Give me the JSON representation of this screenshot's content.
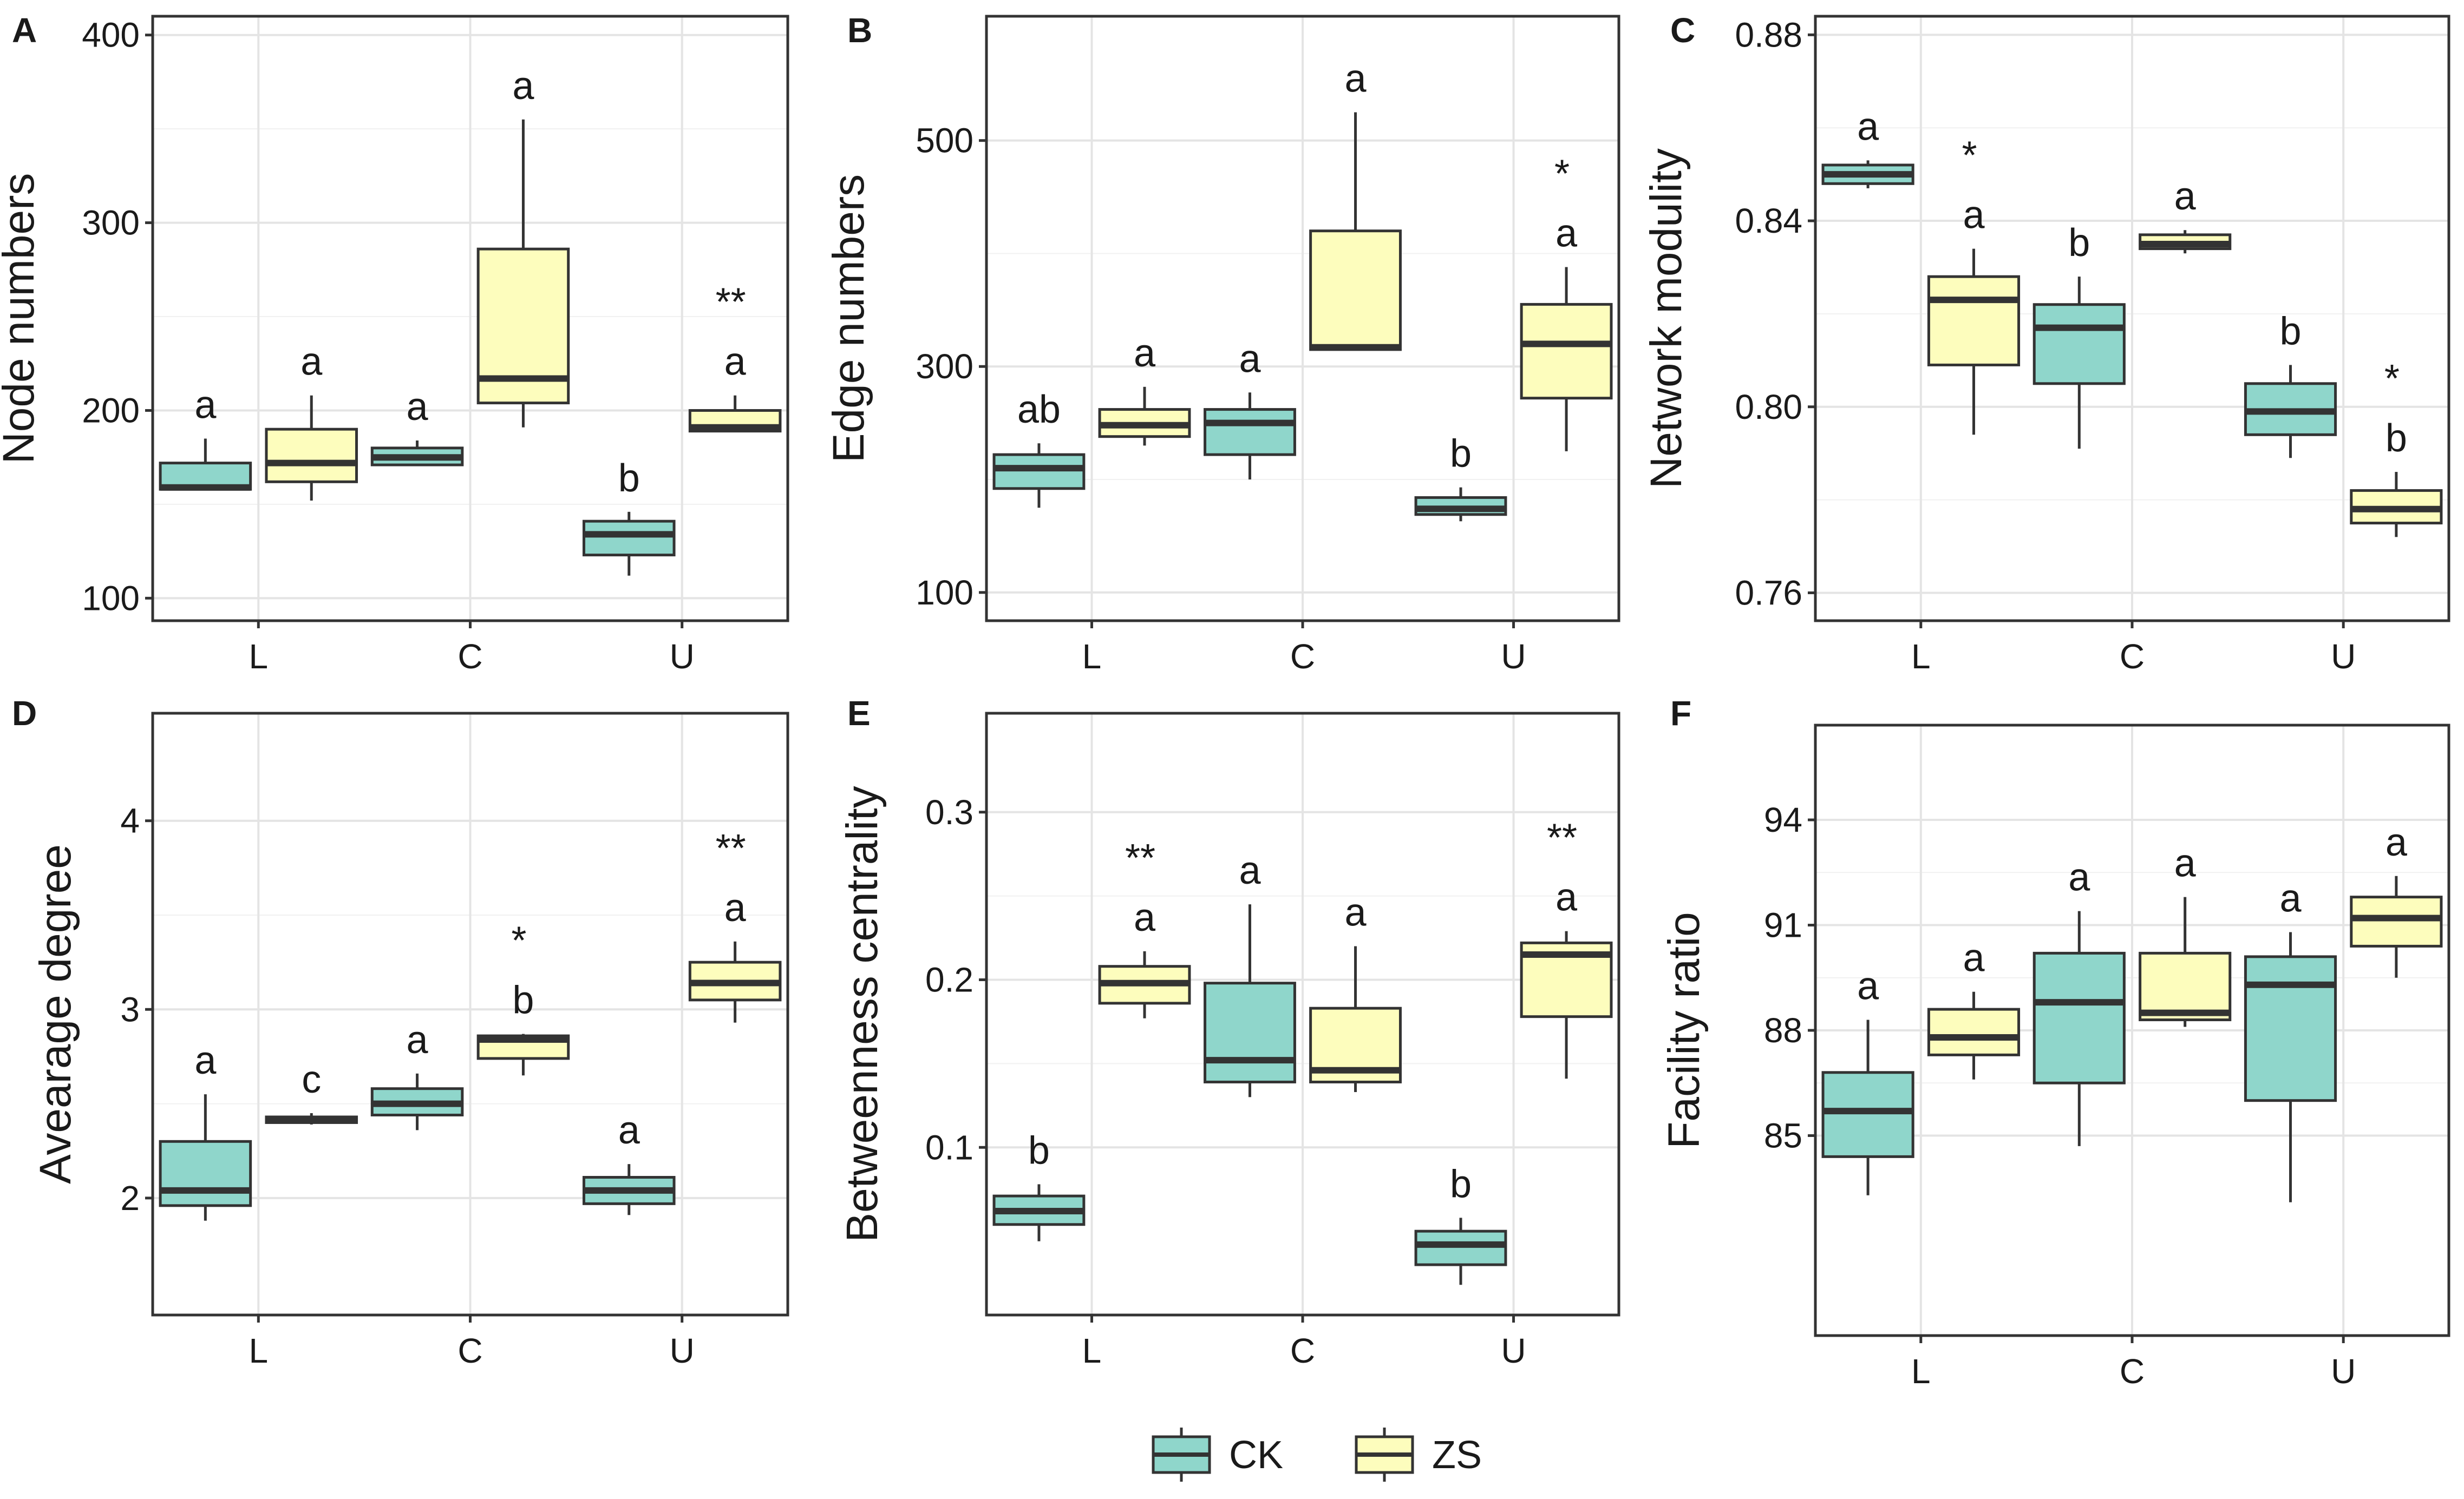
{
  "legend": {
    "items": [
      {
        "label": "CK",
        "fill": "#8fd6cb"
      },
      {
        "label": "ZS",
        "fill": "#fdfdbd"
      }
    ]
  },
  "colors": {
    "ck": "#8fd6cb",
    "zs": "#fdfdbd",
    "grid": "#e4e4e4",
    "frame": "#333333",
    "median": "#333333"
  },
  "chart_data": [
    {
      "panel": "A",
      "type": "box",
      "ylabel": "Node numbers",
      "categories": [
        "L",
        "C",
        "U"
      ],
      "ylim": [
        88,
        410
      ],
      "yticks": [
        100,
        200,
        300,
        400
      ],
      "ytick_labels": [
        "100",
        "200",
        "300",
        "400"
      ],
      "series": [
        {
          "name": "CK",
          "boxes": [
            {
              "min": 158,
              "q1": 158,
              "median": 159,
              "q3": 172,
              "max": 185
            },
            {
              "min": 171,
              "q1": 171,
              "median": 175,
              "q3": 180,
              "max": 184
            },
            {
              "min": 112,
              "q1": 123,
              "median": 134,
              "q3": 141,
              "max": 146
            }
          ],
          "letters": [
            "a",
            "a",
            "b"
          ]
        },
        {
          "name": "ZS",
          "boxes": [
            {
              "min": 152,
              "q1": 162,
              "median": 172,
              "q3": 190,
              "max": 208
            },
            {
              "min": 191,
              "q1": 204,
              "median": 217,
              "q3": 286,
              "max": 355
            },
            {
              "min": 189,
              "q1": 189,
              "median": 191,
              "q3": 200,
              "max": 208
            }
          ],
          "letters": [
            "a",
            "a",
            "a"
          ]
        }
      ],
      "stars": [
        "",
        "",
        "**"
      ]
    },
    {
      "panel": "B",
      "type": "box",
      "ylabel": "Edge numbers",
      "categories": [
        "L",
        "C",
        "U"
      ],
      "ylim": [
        75,
        610
      ],
      "yticks": [
        100,
        300,
        500
      ],
      "ytick_labels": [
        "100",
        "300",
        "500"
      ],
      "series": [
        {
          "name": "CK",
          "boxes": [
            {
              "min": 175,
              "q1": 192,
              "median": 210,
              "q3": 222,
              "max": 232
            },
            {
              "min": 200,
              "q1": 222,
              "median": 250,
              "q3": 262,
              "max": 277
            },
            {
              "min": 163,
              "q1": 169,
              "median": 174,
              "q3": 184,
              "max": 193
            }
          ],
          "letters": [
            "ab",
            "a",
            "b"
          ]
        },
        {
          "name": "ZS",
          "boxes": [
            {
              "min": 230,
              "q1": 238,
              "median": 248,
              "q3": 262,
              "max": 282
            },
            {
              "min": 315,
              "q1": 315,
              "median": 317,
              "q3": 420,
              "max": 525
            },
            {
              "min": 225,
              "q1": 272,
              "median": 320,
              "q3": 355,
              "max": 388
            }
          ],
          "letters": [
            "a",
            "a",
            "a"
          ]
        }
      ],
      "stars": [
        "",
        "",
        "*"
      ]
    },
    {
      "panel": "C",
      "type": "box",
      "ylabel": "Network modulity",
      "categories": [
        "L",
        "C",
        "U"
      ],
      "ylim": [
        0.754,
        0.884
      ],
      "yticks": [
        0.76,
        0.8,
        0.84,
        0.88
      ],
      "ytick_labels": [
        "0.76",
        "0.80",
        "0.84",
        "0.88"
      ],
      "series": [
        {
          "name": "CK",
          "boxes": [
            {
              "min": 0.847,
              "q1": 0.848,
              "median": 0.85,
              "q3": 0.852,
              "max": 0.853
            },
            {
              "min": 0.791,
              "q1": 0.805,
              "median": 0.817,
              "q3": 0.822,
              "max": 0.828
            },
            {
              "min": 0.789,
              "q1": 0.794,
              "median": 0.799,
              "q3": 0.805,
              "max": 0.809
            }
          ],
          "letters": [
            "a",
            "b",
            "b"
          ]
        },
        {
          "name": "ZS",
          "boxes": [
            {
              "min": 0.794,
              "q1": 0.809,
              "median": 0.823,
              "q3": 0.828,
              "max": 0.834
            },
            {
              "min": 0.833,
              "q1": 0.834,
              "median": 0.835,
              "q3": 0.837,
              "max": 0.838
            },
            {
              "min": 0.772,
              "q1": 0.775,
              "median": 0.778,
              "q3": 0.782,
              "max": 0.786
            }
          ],
          "letters": [
            "a",
            "a",
            "b"
          ]
        }
      ],
      "stars": [
        "*",
        "",
        "*"
      ]
    },
    {
      "panel": "D",
      "type": "box",
      "ylabel": "Avearage degree",
      "categories": [
        "L",
        "C",
        "U"
      ],
      "ylim": [
        1.38,
        4.57
      ],
      "yticks": [
        2,
        3,
        4
      ],
      "ytick_labels": [
        "2",
        "3",
        "4"
      ],
      "series": [
        {
          "name": "CK",
          "boxes": [
            {
              "min": 1.88,
              "q1": 1.96,
              "median": 2.04,
              "q3": 2.3,
              "max": 2.55
            },
            {
              "min": 2.36,
              "q1": 2.44,
              "median": 2.5,
              "q3": 2.58,
              "max": 2.66
            },
            {
              "min": 1.91,
              "q1": 1.97,
              "median": 2.04,
              "q3": 2.11,
              "max": 2.18
            }
          ],
          "letters": [
            "a",
            "a",
            "a"
          ]
        },
        {
          "name": "ZS",
          "boxes": [
            {
              "min": 2.39,
              "q1": 2.4,
              "median": 2.42,
              "q3": 2.43,
              "max": 2.45
            },
            {
              "min": 2.65,
              "q1": 2.74,
              "median": 2.84,
              "q3": 2.86,
              "max": 2.87
            },
            {
              "min": 2.93,
              "q1": 3.05,
              "median": 3.14,
              "q3": 3.25,
              "max": 3.36
            }
          ],
          "letters": [
            "c",
            "b",
            "a"
          ]
        }
      ],
      "stars": [
        "",
        "*",
        "**"
      ]
    },
    {
      "panel": "E",
      "type": "box",
      "ylabel": "Betweenness centrality",
      "categories": [
        "L",
        "C",
        "U"
      ],
      "ylim": [
        0.0,
        0.359
      ],
      "yticks": [
        0.1,
        0.2,
        0.3
      ],
      "ytick_labels": [
        "0.1",
        "0.2",
        "0.3"
      ],
      "series": [
        {
          "name": "CK",
          "boxes": [
            {
              "min": 0.044,
              "q1": 0.054,
              "median": 0.062,
              "q3": 0.071,
              "max": 0.078
            },
            {
              "min": 0.13,
              "q1": 0.139,
              "median": 0.152,
              "q3": 0.198,
              "max": 0.245
            },
            {
              "min": 0.018,
              "q1": 0.03,
              "median": 0.042,
              "q3": 0.05,
              "max": 0.058
            }
          ],
          "letters": [
            "b",
            "a",
            "b"
          ]
        },
        {
          "name": "ZS",
          "boxes": [
            {
              "min": 0.177,
              "q1": 0.186,
              "median": 0.198,
              "q3": 0.208,
              "max": 0.217
            },
            {
              "min": 0.133,
              "q1": 0.139,
              "median": 0.146,
              "q3": 0.183,
              "max": 0.22
            },
            {
              "min": 0.141,
              "q1": 0.178,
              "median": 0.215,
              "q3": 0.222,
              "max": 0.229
            }
          ],
          "letters": [
            "a",
            "a",
            "a"
          ]
        }
      ],
      "stars": [
        "**",
        "",
        "**"
      ]
    },
    {
      "panel": "F",
      "type": "box",
      "ylabel": "Facility ratio",
      "categories": [
        "L",
        "C",
        "U"
      ],
      "ylim": [
        79.3,
        96.7
      ],
      "yticks": [
        85,
        88,
        91,
        94
      ],
      "ytick_labels": [
        "85",
        "88",
        "91",
        "94"
      ],
      "series": [
        {
          "name": "CK",
          "boxes": [
            {
              "min": 83.3,
              "q1": 84.4,
              "median": 85.7,
              "q3": 86.8,
              "max": 88.3
            },
            {
              "min": 84.7,
              "q1": 86.5,
              "median": 88.8,
              "q3": 90.2,
              "max": 91.4
            },
            {
              "min": 83.1,
              "q1": 86.0,
              "median": 89.3,
              "q3": 90.1,
              "max": 90.8
            }
          ],
          "letters": [
            "a",
            "a",
            "a"
          ]
        },
        {
          "name": "ZS",
          "boxes": [
            {
              "min": 86.6,
              "q1": 87.3,
              "median": 87.8,
              "q3": 88.6,
              "max": 89.1
            },
            {
              "min": 88.1,
              "q1": 88.3,
              "median": 88.5,
              "q3": 90.2,
              "max": 91.8
            },
            {
              "min": 89.5,
              "q1": 90.4,
              "median": 91.2,
              "q3": 91.8,
              "max": 92.4
            }
          ],
          "letters": [
            "a",
            "a",
            "a"
          ]
        }
      ],
      "stars": [
        "",
        "",
        ""
      ]
    }
  ]
}
